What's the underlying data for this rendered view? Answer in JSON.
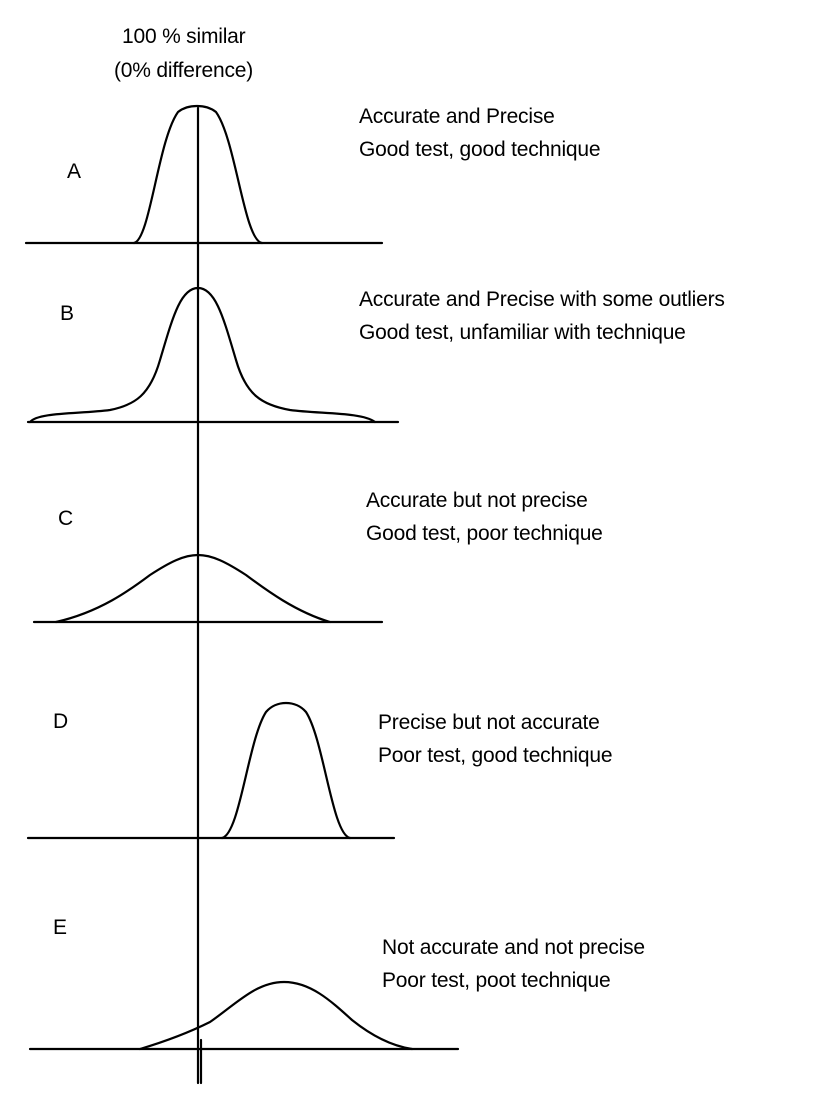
{
  "header": {
    "line1": "100 % similar",
    "line2": "(0% difference)"
  },
  "panels": [
    {
      "letter": "A",
      "title": "Accurate and Precise",
      "description": "Good test, good technique"
    },
    {
      "letter": "B",
      "title": "Accurate and Precise with some outliers",
      "description": "Good test, unfamiliar with technique"
    },
    {
      "letter": "C",
      "title": "Accurate but not precise",
      "description": "Good test, poor technique"
    },
    {
      "letter": "D",
      "title": "Precise but not accurate",
      "description": "Poor test, good technique"
    },
    {
      "letter": "E",
      "title": "Not accurate and not precise",
      "description": "Poor test, poot technique"
    }
  ],
  "colors": {
    "stroke": "#000000",
    "background": "#ffffff"
  }
}
